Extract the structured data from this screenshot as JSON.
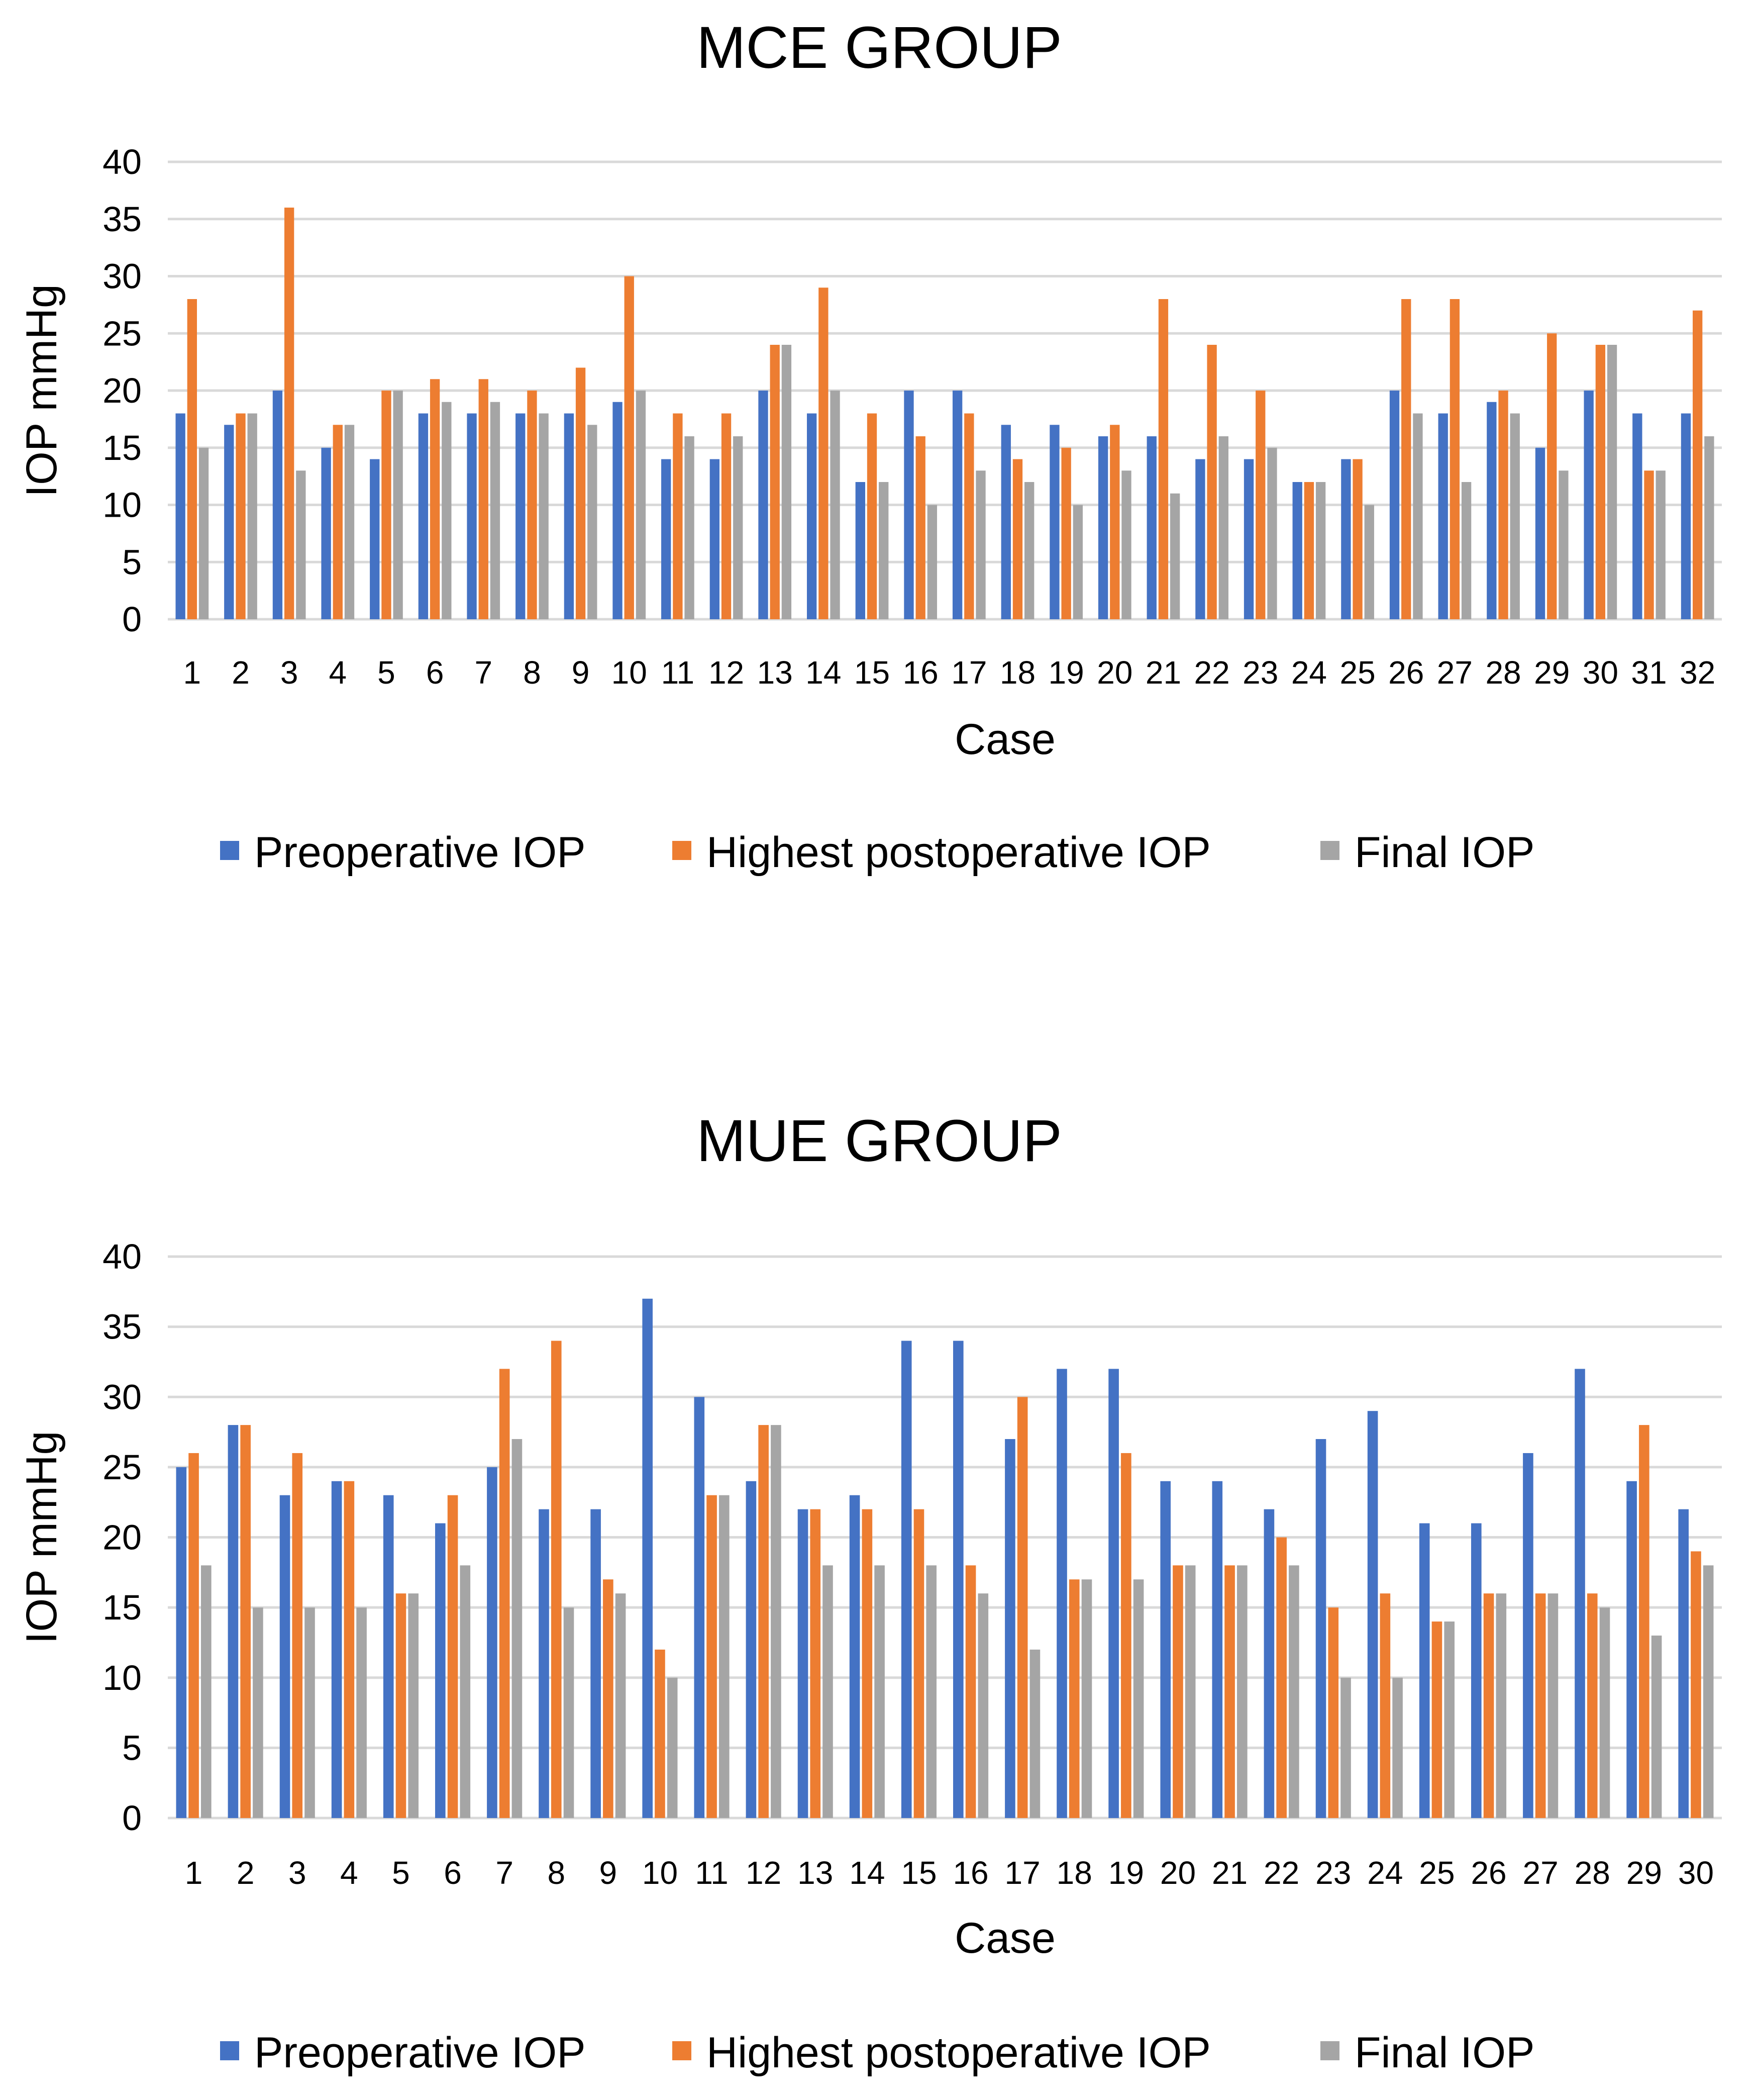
{
  "colors": {
    "preoperative": "#4472C4",
    "highest": "#ED7D31",
    "final": "#A5A5A5",
    "grid": "#D9D9D9",
    "text": "#000000"
  },
  "chart_data": [
    {
      "type": "bar",
      "title": "MCE GROUP",
      "xlabel": "Case",
      "ylabel": "IOP mmHg",
      "ylim": [
        0,
        40
      ],
      "yticks": [
        0,
        5,
        10,
        15,
        20,
        25,
        30,
        35,
        40
      ],
      "grid": true,
      "legend_position": "bottom",
      "categories": [
        "1",
        "2",
        "3",
        "4",
        "5",
        "6",
        "7",
        "8",
        "9",
        "10",
        "11",
        "12",
        "13",
        "14",
        "15",
        "16",
        "17",
        "18",
        "19",
        "20",
        "21",
        "22",
        "23",
        "24",
        "25",
        "26",
        "27",
        "28",
        "29",
        "30",
        "31",
        "32"
      ],
      "series": [
        {
          "name": "Preoperative IOP",
          "values": [
            18,
            17,
            20,
            15,
            14,
            18,
            18,
            18,
            18,
            19,
            14,
            14,
            20,
            18,
            12,
            20,
            20,
            17,
            17,
            16,
            16,
            14,
            14,
            12,
            14,
            20,
            18,
            19,
            15,
            20,
            18,
            18
          ]
        },
        {
          "name": "Highest postoperative IOP",
          "values": [
            28,
            18,
            36,
            17,
            20,
            21,
            21,
            20,
            22,
            30,
            18,
            18,
            24,
            29,
            18,
            16,
            18,
            14,
            15,
            17,
            28,
            24,
            20,
            12,
            14,
            28,
            28,
            20,
            25,
            24,
            13,
            27
          ]
        },
        {
          "name": "Final IOP",
          "values": [
            15,
            18,
            13,
            17,
            20,
            19,
            19,
            18,
            17,
            20,
            16,
            16,
            24,
            20,
            12,
            10,
            13,
            12,
            10,
            13,
            11,
            16,
            15,
            12,
            10,
            18,
            12,
            18,
            13,
            24,
            13,
            16
          ]
        }
      ]
    },
    {
      "type": "bar",
      "title": "MUE GROUP",
      "xlabel": "Case",
      "ylabel": "IOP mmHg",
      "ylim": [
        0,
        40
      ],
      "yticks": [
        0,
        5,
        10,
        15,
        20,
        25,
        30,
        35,
        40
      ],
      "grid": true,
      "legend_position": "bottom",
      "categories": [
        "1",
        "2",
        "3",
        "4",
        "5",
        "6",
        "7",
        "8",
        "9",
        "10",
        "11",
        "12",
        "13",
        "14",
        "15",
        "16",
        "17",
        "18",
        "19",
        "20",
        "21",
        "22",
        "23",
        "24",
        "25",
        "26",
        "27",
        "28",
        "29",
        "30"
      ],
      "series": [
        {
          "name": "Preoperative IOP",
          "values": [
            25,
            28,
            23,
            24,
            23,
            21,
            25,
            22,
            22,
            37,
            30,
            24,
            22,
            23,
            34,
            34,
            27,
            32,
            32,
            24,
            24,
            22,
            27,
            29,
            21,
            21,
            26,
            32,
            24,
            22
          ]
        },
        {
          "name": "Highest postoperative IOP",
          "values": [
            26,
            28,
            26,
            24,
            16,
            23,
            32,
            34,
            17,
            12,
            23,
            28,
            22,
            22,
            22,
            18,
            30,
            17,
            26,
            18,
            18,
            20,
            15,
            16,
            14,
            16,
            16,
            16,
            28,
            19
          ]
        },
        {
          "name": "Final IOP",
          "values": [
            18,
            15,
            15,
            15,
            16,
            18,
            27,
            15,
            16,
            10,
            23,
            28,
            18,
            18,
            18,
            16,
            12,
            17,
            17,
            18,
            18,
            18,
            10,
            10,
            14,
            16,
            16,
            15,
            13,
            18
          ]
        }
      ]
    }
  ]
}
